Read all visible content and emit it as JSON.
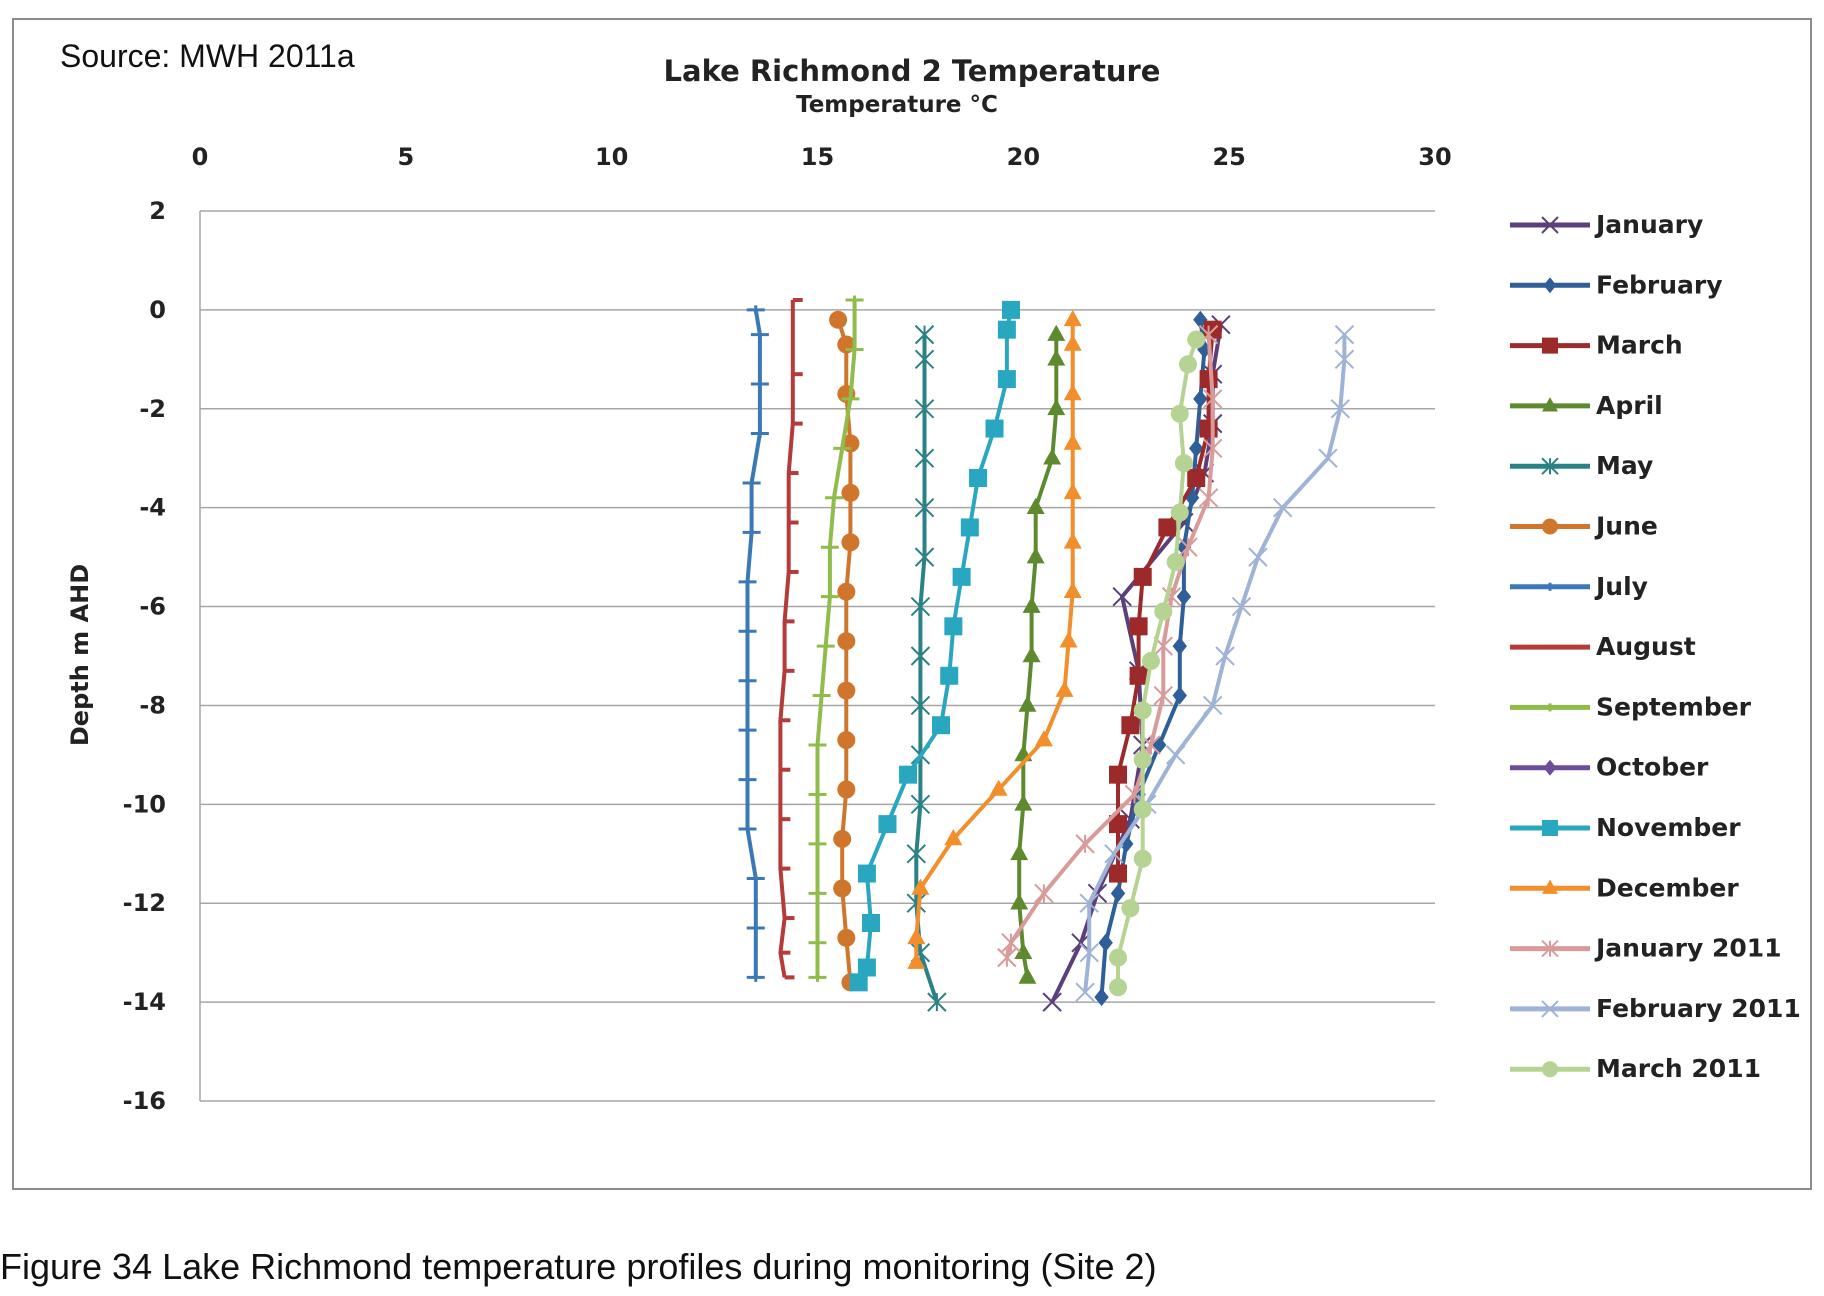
{
  "source_note": "Source: MWH 2011a",
  "caption": "Figure 34  Lake Richmond temperature profiles during monitoring (Site 2)",
  "chart_data": {
    "type": "line",
    "title": "Lake Richmond 2 Temperature",
    "xlabel": "Temperature °C",
    "ylabel": "Depth m AHD",
    "x_axis_position": "top",
    "xlim": [
      0,
      30
    ],
    "ylim": [
      -16,
      2
    ],
    "xticks": [
      0,
      5,
      10,
      15,
      20,
      25,
      30
    ],
    "yticks": [
      2,
      0,
      -2,
      -4,
      -6,
      -8,
      -10,
      -12,
      -14,
      -16
    ],
    "grid": "horizontal",
    "legend_position": "right",
    "series": [
      {
        "name": "January",
        "color": "#5b3f7a",
        "marker": "x",
        "points": [
          [
            24.8,
            -0.3
          ],
          [
            24.6,
            -1.3
          ],
          [
            24.6,
            -2.3
          ],
          [
            24.4,
            -3.3
          ],
          [
            23.9,
            -4.3
          ],
          [
            22.4,
            -5.8
          ],
          [
            22.8,
            -7.3
          ],
          [
            22.9,
            -8.8
          ],
          [
            22.6,
            -10.3
          ],
          [
            21.8,
            -11.8
          ],
          [
            21.4,
            -12.8
          ],
          [
            20.7,
            -14.0
          ]
        ]
      },
      {
        "name": "February",
        "color": "#2e5f99",
        "marker": "diamond",
        "points": [
          [
            24.3,
            -0.2
          ],
          [
            24.4,
            -0.8
          ],
          [
            24.3,
            -1.8
          ],
          [
            24.2,
            -2.8
          ],
          [
            24.1,
            -3.8
          ],
          [
            23.9,
            -4.8
          ],
          [
            23.9,
            -5.8
          ],
          [
            23.8,
            -6.8
          ],
          [
            23.8,
            -7.8
          ],
          [
            23.3,
            -8.8
          ],
          [
            22.8,
            -9.8
          ],
          [
            22.5,
            -10.8
          ],
          [
            22.3,
            -11.8
          ],
          [
            22.0,
            -12.8
          ],
          [
            21.9,
            -13.9
          ]
        ]
      },
      {
        "name": "March",
        "color": "#9c2a2a",
        "marker": "square",
        "points": [
          [
            24.6,
            -0.4
          ],
          [
            24.5,
            -1.4
          ],
          [
            24.5,
            -2.4
          ],
          [
            24.2,
            -3.4
          ],
          [
            23.5,
            -4.4
          ],
          [
            22.9,
            -5.4
          ],
          [
            22.8,
            -6.4
          ],
          [
            22.8,
            -7.4
          ],
          [
            22.6,
            -8.4
          ],
          [
            22.3,
            -9.4
          ],
          [
            22.3,
            -10.4
          ],
          [
            22.3,
            -11.4
          ]
        ]
      },
      {
        "name": "April",
        "color": "#5e8a2f",
        "marker": "triangle",
        "points": [
          [
            20.8,
            -0.5
          ],
          [
            20.8,
            -1.0
          ],
          [
            20.8,
            -2.0
          ],
          [
            20.7,
            -3.0
          ],
          [
            20.3,
            -4.0
          ],
          [
            20.3,
            -5.0
          ],
          [
            20.2,
            -6.0
          ],
          [
            20.2,
            -7.0
          ],
          [
            20.1,
            -8.0
          ],
          [
            20.0,
            -9.0
          ],
          [
            20.0,
            -10.0
          ],
          [
            19.9,
            -11.0
          ],
          [
            19.9,
            -12.0
          ],
          [
            20.0,
            -13.0
          ],
          [
            20.1,
            -13.5
          ]
        ]
      },
      {
        "name": "May",
        "color": "#2a8286",
        "marker": "asterisk",
        "points": [
          [
            17.6,
            -0.5
          ],
          [
            17.6,
            -1.0
          ],
          [
            17.6,
            -2.0
          ],
          [
            17.6,
            -3.0
          ],
          [
            17.6,
            -4.0
          ],
          [
            17.6,
            -5.0
          ],
          [
            17.5,
            -6.0
          ],
          [
            17.5,
            -7.0
          ],
          [
            17.5,
            -8.0
          ],
          [
            17.5,
            -9.0
          ],
          [
            17.5,
            -10.0
          ],
          [
            17.4,
            -11.0
          ],
          [
            17.4,
            -12.0
          ],
          [
            17.5,
            -13.0
          ],
          [
            17.9,
            -14.0
          ]
        ]
      },
      {
        "name": "June",
        "color": "#d0762c",
        "marker": "circle",
        "points": [
          [
            15.5,
            -0.2
          ],
          [
            15.7,
            -0.7
          ],
          [
            15.7,
            -1.7
          ],
          [
            15.8,
            -2.7
          ],
          [
            15.8,
            -3.7
          ],
          [
            15.8,
            -4.7
          ],
          [
            15.7,
            -5.7
          ],
          [
            15.7,
            -6.7
          ],
          [
            15.7,
            -7.7
          ],
          [
            15.7,
            -8.7
          ],
          [
            15.7,
            -9.7
          ],
          [
            15.6,
            -10.7
          ],
          [
            15.6,
            -11.7
          ],
          [
            15.7,
            -12.7
          ],
          [
            15.8,
            -13.6
          ]
        ]
      },
      {
        "name": "July",
        "color": "#3a78b8",
        "marker": "plus",
        "points": [
          [
            13.5,
            0.0
          ],
          [
            13.6,
            -0.5
          ],
          [
            13.6,
            -1.5
          ],
          [
            13.6,
            -2.5
          ],
          [
            13.4,
            -3.5
          ],
          [
            13.4,
            -4.5
          ],
          [
            13.3,
            -5.5
          ],
          [
            13.3,
            -6.5
          ],
          [
            13.3,
            -7.5
          ],
          [
            13.3,
            -8.5
          ],
          [
            13.3,
            -9.5
          ],
          [
            13.3,
            -10.5
          ],
          [
            13.5,
            -11.5
          ],
          [
            13.5,
            -12.5
          ],
          [
            13.5,
            -13.5
          ]
        ]
      },
      {
        "name": "August",
        "color": "#b53a3a",
        "marker": "bar",
        "points": [
          [
            14.4,
            0.2
          ],
          [
            14.4,
            -1.3
          ],
          [
            14.4,
            -2.3
          ],
          [
            14.3,
            -3.3
          ],
          [
            14.3,
            -4.3
          ],
          [
            14.3,
            -5.3
          ],
          [
            14.2,
            -6.3
          ],
          [
            14.2,
            -7.3
          ],
          [
            14.1,
            -8.3
          ],
          [
            14.1,
            -9.3
          ],
          [
            14.1,
            -10.3
          ],
          [
            14.1,
            -11.3
          ],
          [
            14.2,
            -12.3
          ],
          [
            14.1,
            -13.0
          ],
          [
            14.2,
            -13.5
          ]
        ]
      },
      {
        "name": "September",
        "color": "#8fbc4a",
        "marker": "plus",
        "points": [
          [
            15.9,
            0.2
          ],
          [
            15.9,
            -0.8
          ],
          [
            15.8,
            -1.8
          ],
          [
            15.6,
            -2.8
          ],
          [
            15.4,
            -3.8
          ],
          [
            15.3,
            -4.8
          ],
          [
            15.3,
            -5.8
          ],
          [
            15.2,
            -6.8
          ],
          [
            15.1,
            -7.8
          ],
          [
            15.0,
            -8.8
          ],
          [
            15.0,
            -9.8
          ],
          [
            15.0,
            -10.8
          ],
          [
            15.0,
            -11.8
          ],
          [
            15.0,
            -12.8
          ],
          [
            15.0,
            -13.5
          ]
        ]
      },
      {
        "name": "October",
        "color": "#6b4d9a",
        "marker": "diamond",
        "points": []
      },
      {
        "name": "November",
        "color": "#2aa7c0",
        "marker": "square",
        "points": [
          [
            19.7,
            0.0
          ],
          [
            19.6,
            -0.4
          ],
          [
            19.6,
            -1.4
          ],
          [
            19.3,
            -2.4
          ],
          [
            18.9,
            -3.4
          ],
          [
            18.7,
            -4.4
          ],
          [
            18.5,
            -5.4
          ],
          [
            18.3,
            -6.4
          ],
          [
            18.2,
            -7.4
          ],
          [
            18.0,
            -8.4
          ],
          [
            17.2,
            -9.4
          ],
          [
            16.7,
            -10.4
          ],
          [
            16.2,
            -11.4
          ],
          [
            16.3,
            -12.4
          ],
          [
            16.2,
            -13.3
          ],
          [
            16.0,
            -13.6
          ]
        ]
      },
      {
        "name": "December",
        "color": "#f28e2b",
        "marker": "triangle",
        "points": [
          [
            21.2,
            -0.2
          ],
          [
            21.2,
            -0.7
          ],
          [
            21.2,
            -1.7
          ],
          [
            21.2,
            -2.7
          ],
          [
            21.2,
            -3.7
          ],
          [
            21.2,
            -4.7
          ],
          [
            21.2,
            -5.7
          ],
          [
            21.1,
            -6.7
          ],
          [
            21.0,
            -7.7
          ],
          [
            20.5,
            -8.7
          ],
          [
            19.4,
            -9.7
          ],
          [
            18.3,
            -10.7
          ],
          [
            17.5,
            -11.7
          ],
          [
            17.4,
            -12.7
          ],
          [
            17.4,
            -13.2
          ]
        ]
      },
      {
        "name": "January 2011",
        "color": "#d99a9a",
        "marker": "asterisk",
        "points": [
          [
            24.5,
            -0.5
          ],
          [
            24.6,
            -1.8
          ],
          [
            24.6,
            -2.8
          ],
          [
            24.5,
            -3.8
          ],
          [
            24.0,
            -4.8
          ],
          [
            23.6,
            -5.8
          ],
          [
            23.4,
            -6.8
          ],
          [
            23.4,
            -7.8
          ],
          [
            23.1,
            -8.8
          ],
          [
            22.7,
            -9.8
          ],
          [
            21.5,
            -10.8
          ],
          [
            20.5,
            -11.8
          ],
          [
            19.7,
            -12.8
          ],
          [
            19.6,
            -13.1
          ]
        ]
      },
      {
        "name": "February 2011",
        "color": "#9fb3d6",
        "marker": "x",
        "points": [
          [
            27.8,
            -0.5
          ],
          [
            27.8,
            -1.0
          ],
          [
            27.7,
            -2.0
          ],
          [
            27.4,
            -3.0
          ],
          [
            26.3,
            -4.0
          ],
          [
            25.7,
            -5.0
          ],
          [
            25.3,
            -6.0
          ],
          [
            24.9,
            -7.0
          ],
          [
            24.6,
            -8.0
          ],
          [
            23.7,
            -9.0
          ],
          [
            23.0,
            -10.0
          ],
          [
            22.2,
            -11.0
          ],
          [
            21.6,
            -12.0
          ],
          [
            21.6,
            -13.0
          ],
          [
            21.5,
            -13.8
          ]
        ]
      },
      {
        "name": "March 2011",
        "color": "#b5d392",
        "marker": "circle",
        "points": [
          [
            24.2,
            -0.6
          ],
          [
            24.0,
            -1.1
          ],
          [
            23.8,
            -2.1
          ],
          [
            23.9,
            -3.1
          ],
          [
            23.8,
            -4.1
          ],
          [
            23.7,
            -5.1
          ],
          [
            23.4,
            -6.1
          ],
          [
            23.1,
            -7.1
          ],
          [
            22.9,
            -8.1
          ],
          [
            22.9,
            -9.1
          ],
          [
            22.9,
            -10.1
          ],
          [
            22.9,
            -11.1
          ],
          [
            22.6,
            -12.1
          ],
          [
            22.3,
            -13.1
          ],
          [
            22.3,
            -13.7
          ]
        ]
      }
    ]
  }
}
